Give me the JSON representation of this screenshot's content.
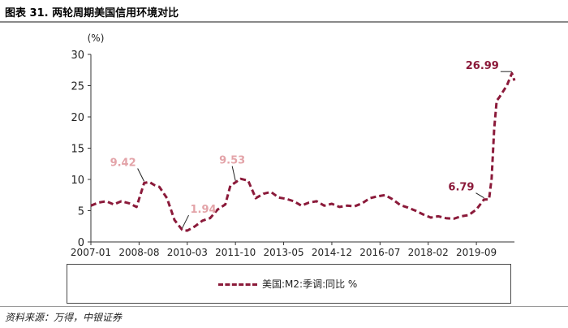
{
  "title": "图表 31. 两轮周期美国信用环境对比",
  "source": "资料来源：万得，中银证券",
  "chart_data": {
    "type": "line",
    "title": "",
    "ylabel": "(%)",
    "xlabel": "",
    "ylim": [
      0,
      30
    ],
    "yticks": [
      0,
      5,
      10,
      15,
      20,
      25,
      30
    ],
    "xticks": [
      "2007-01",
      "2008-08",
      "2010-03",
      "2011-10",
      "2013-05",
      "2014-12",
      "2016-07",
      "2018-02",
      "2019-09"
    ],
    "x_start": "2007-01",
    "x_end": "2020-12",
    "grid": false,
    "legend": "bottom",
    "colors": {
      "series": "#8b1a3a",
      "annotation_muted": "#e3a3a8",
      "annotation_dark": "#8b1a3a"
    },
    "series": [
      {
        "name": "美国:M2:季调:同比 %",
        "style": "dashed",
        "x": [
          "2007-01",
          "2007-04",
          "2007-07",
          "2007-10",
          "2008-01",
          "2008-04",
          "2008-07",
          "2008-10",
          "2008-12",
          "2009-02",
          "2009-04",
          "2009-07",
          "2009-10",
          "2010-01",
          "2010-03",
          "2010-06",
          "2010-09",
          "2010-12",
          "2011-03",
          "2011-06",
          "2011-08",
          "2011-10",
          "2011-12",
          "2012-03",
          "2012-06",
          "2012-09",
          "2012-12",
          "2013-03",
          "2013-06",
          "2013-09",
          "2013-12",
          "2014-03",
          "2014-06",
          "2014-09",
          "2014-12",
          "2015-03",
          "2015-06",
          "2015-09",
          "2015-12",
          "2016-03",
          "2016-06",
          "2016-09",
          "2016-12",
          "2017-03",
          "2017-06",
          "2017-09",
          "2017-12",
          "2018-03",
          "2018-06",
          "2018-09",
          "2018-12",
          "2019-03",
          "2019-06",
          "2019-09",
          "2019-12",
          "2020-02",
          "2020-03",
          "2020-04",
          "2020-05",
          "2020-06",
          "2020-09",
          "2020-11",
          "2020-12"
        ],
        "values": [
          5.8,
          6.3,
          6.5,
          6.0,
          6.5,
          6.2,
          5.6,
          9.42,
          9.6,
          9.1,
          8.8,
          7.0,
          3.5,
          1.94,
          1.8,
          2.5,
          3.4,
          3.8,
          5.2,
          6.0,
          9.0,
          9.53,
          10.1,
          9.8,
          7.0,
          7.7,
          8.0,
          7.1,
          6.9,
          6.5,
          5.8,
          6.3,
          6.5,
          5.8,
          6.1,
          5.6,
          5.8,
          5.7,
          6.2,
          7.0,
          7.3,
          7.5,
          6.8,
          5.9,
          5.5,
          5.0,
          4.4,
          3.9,
          4.1,
          3.8,
          3.7,
          4.1,
          4.3,
          5.2,
          6.79,
          6.8,
          10.2,
          18.0,
          22.6,
          23.1,
          25.0,
          26.99,
          25.8
        ]
      }
    ],
    "annotations": [
      {
        "text": "9.42",
        "x": "2008-10",
        "y": 9.42,
        "color": "#e3a3a8"
      },
      {
        "text": "1.94",
        "x": "2010-01",
        "y": 1.94,
        "color": "#e3a3a8"
      },
      {
        "text": "9.53",
        "x": "2011-10",
        "y": 9.53,
        "color": "#e3a3a8"
      },
      {
        "text": "6.79",
        "x": "2019-12",
        "y": 6.79,
        "color": "#8b1a3a"
      },
      {
        "text": "26.99",
        "x": "2020-11",
        "y": 26.99,
        "color": "#8b1a3a"
      }
    ]
  }
}
